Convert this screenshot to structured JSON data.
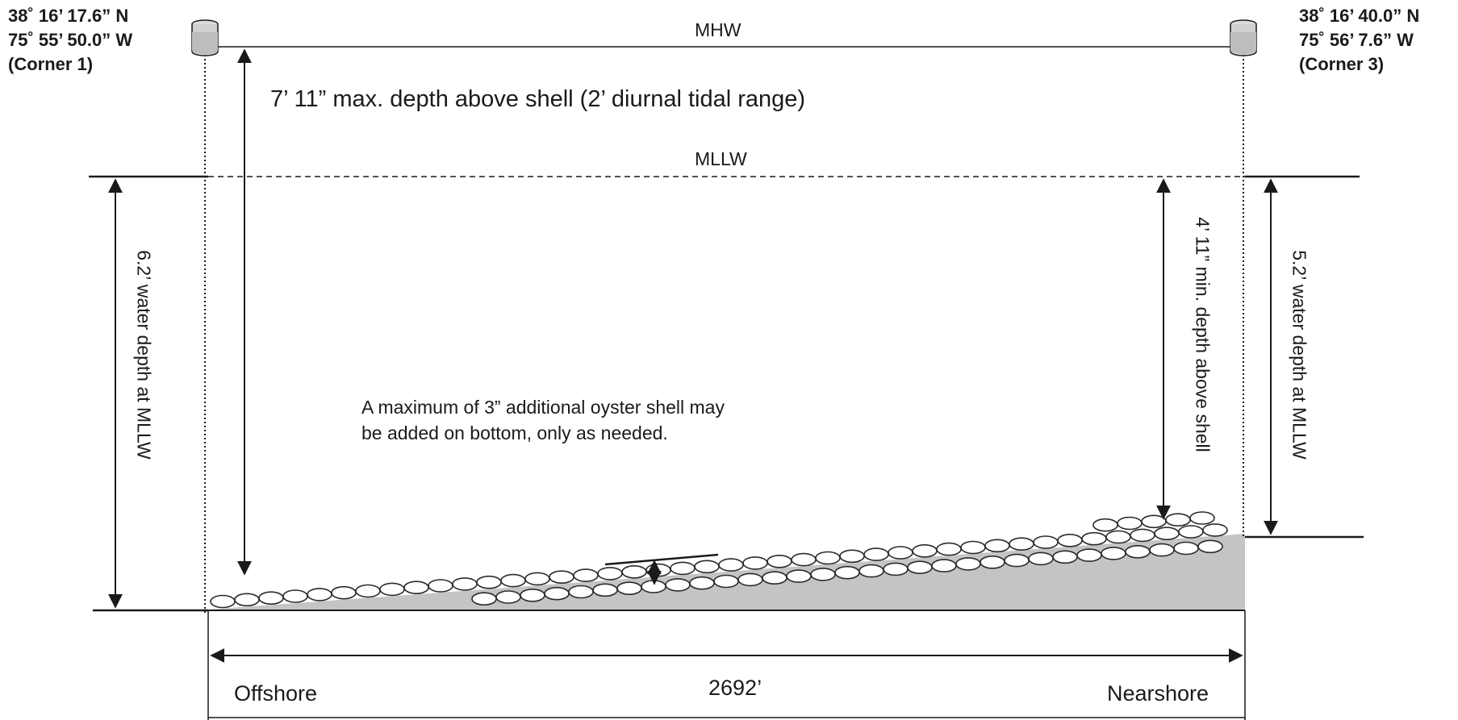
{
  "corners": {
    "left": {
      "lat": "38˚ 16’ 17.6” N",
      "lon": "75˚ 55’ 50.0” W",
      "name": "(Corner 1)",
      "icon": "buoy-icon"
    },
    "right": {
      "lat": "38˚ 16’ 40.0” N",
      "lon": "75˚ 56’ 7.6” W",
      "name": "(Corner 3)",
      "icon": "buoy-icon"
    }
  },
  "levels": {
    "mhw": "MHW",
    "mllw": "MLLW"
  },
  "dimensions": {
    "max_depth": "7’ 11” max. depth above shell (2’ diurnal tidal range)",
    "left_depth": "6.2’ water depth at MLLW",
    "min_depth": "4’ 11” min. depth above shell",
    "right_depth": "5.2’ water depth at MLLW",
    "length": "2692’"
  },
  "note": "A maximum of 3” additional oyster shell may be added on bottom, only as needed.",
  "ends": {
    "offshore": "Offshore",
    "nearshore": "Nearshore"
  },
  "colors": {
    "line": "#1a1a1a",
    "seabed": "#c4c4c4",
    "shell_stroke": "#2a2a2a",
    "shell_fill": "#ffffff"
  }
}
